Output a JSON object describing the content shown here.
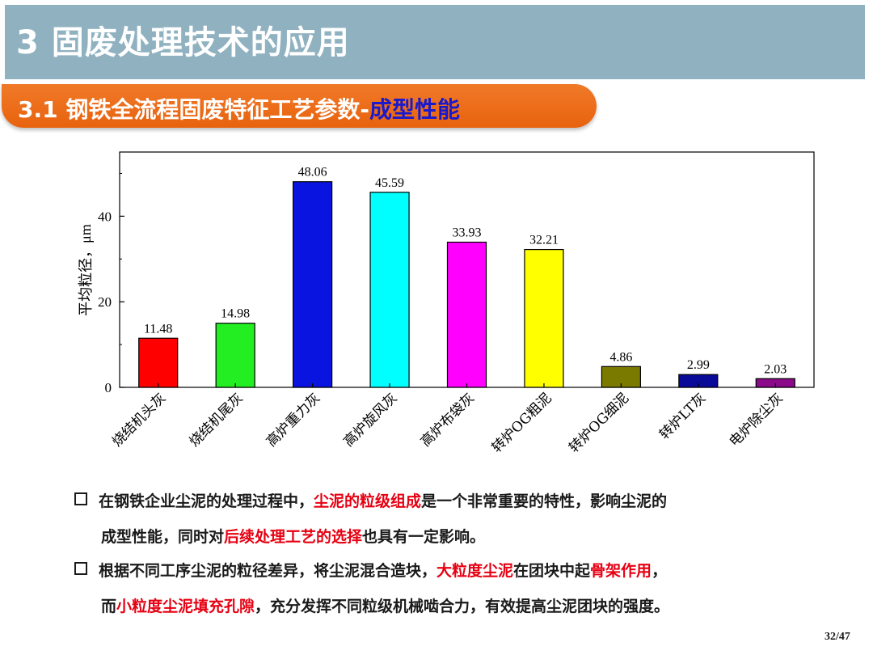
{
  "header": {
    "title": "3 固废处理技术的应用"
  },
  "subheader": {
    "text_main": "3.1 钢铁全流程固废特征工艺参数-",
    "text_emph": "成型性能"
  },
  "chart_data": {
    "type": "bar",
    "ylabel": "平均粒径，μm",
    "xlabel": "",
    "ylim": [
      0,
      55
    ],
    "yticks": [
      0,
      20,
      40
    ],
    "categories": [
      "烧结机头灰",
      "烧结机尾灰",
      "高炉重力灰",
      "高炉旋风灰",
      "高炉布袋灰",
      "转炉OG粗泥",
      "转炉OG细泥",
      "转炉LT灰",
      "电炉除尘灰"
    ],
    "values": [
      11.48,
      14.98,
      48.06,
      45.59,
      33.93,
      32.21,
      4.86,
      2.99,
      2.03
    ],
    "labels": [
      "11.48",
      "14.98",
      "48.06",
      "45.59",
      "33.93",
      "32.21",
      "4.86",
      "2.99",
      "2.03"
    ],
    "colors": [
      "#ff0000",
      "#22ee22",
      "#0a14e0",
      "#00ffff",
      "#ff00ff",
      "#ffff00",
      "#7a7a00",
      "#0a0a99",
      "#8a0a8a"
    ]
  },
  "bullets": {
    "b1": {
      "p1": "在钢铁企业尘泥的处理过程中，",
      "p2": "尘泥的粒级组成",
      "p3": "是一个非常重要的特性，影响尘泥的",
      "p4": "成型性能，同时对",
      "p5": "后续处理工艺的选择",
      "p6": "也具有一定影响。"
    },
    "b2": {
      "p1": "根据不同工序尘泥的粒径差异，将尘泥混合造块，",
      "p2": "大粒度尘泥",
      "p3": "在团块中起",
      "p4": "骨架作用",
      "p5": "，",
      "p6": "而",
      "p7": "小粒度尘泥填充孔隙",
      "p8": "，充分发挥不同粒级机械啮合力，有效提高尘泥团块的强度。"
    }
  },
  "footer": {
    "page": "32/47"
  }
}
